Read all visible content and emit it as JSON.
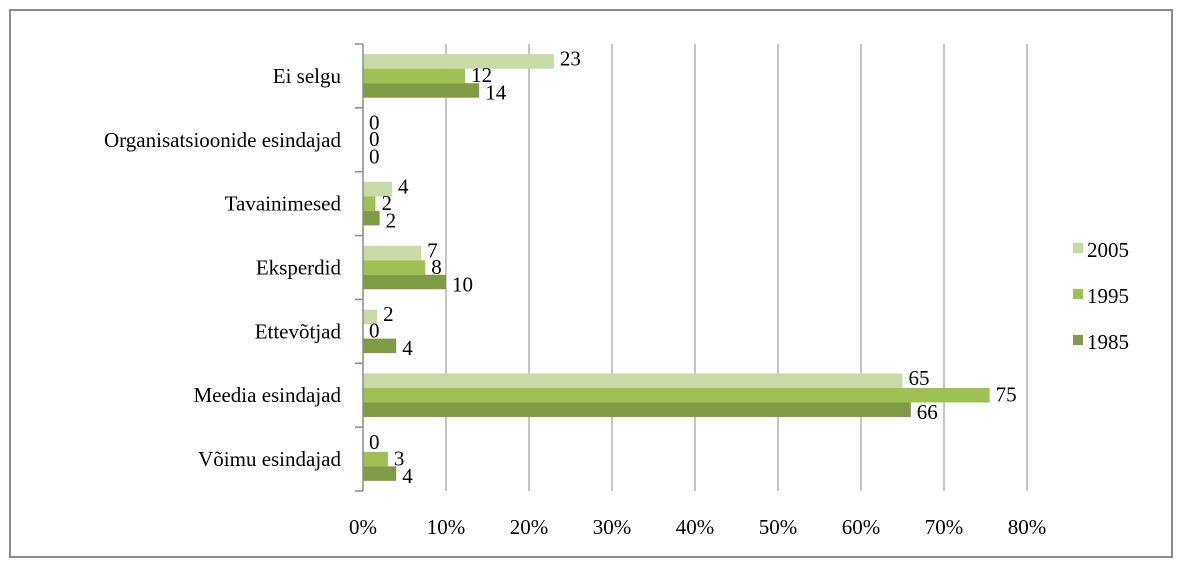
{
  "chart_data": {
    "type": "bar",
    "orientation": "horizontal",
    "categories": [
      "Võimu esindajad",
      "Meedia esindajad",
      "Ettevõtjad",
      "Eksperdid",
      "Tavainimesed",
      "Organisatsioonide esindajad",
      "Ei selgu"
    ],
    "series": [
      {
        "name": "1985",
        "color": "#7f9b46",
        "values": [
          4,
          66,
          4,
          10,
          2,
          0,
          14
        ],
        "values_pct": [
          4,
          66,
          4,
          10,
          2,
          0,
          14
        ]
      },
      {
        "name": "1995",
        "color": "#9fc153",
        "values": [
          3,
          75,
          0,
          8,
          2,
          0,
          12
        ],
        "values_pct": [
          3,
          75.5,
          0,
          7.5,
          1.5,
          0,
          12.3
        ]
      },
      {
        "name": "2005",
        "color": "#c8daa6",
        "values": [
          0,
          65,
          2,
          7,
          4,
          0,
          23
        ],
        "values_pct": [
          0,
          65,
          1.7,
          7,
          3.5,
          0,
          23
        ]
      }
    ],
    "xaxis": {
      "min": 0,
      "max": 80,
      "step": 10,
      "tick_suffix": "%"
    },
    "grid": true,
    "legend_position": "right",
    "title": "",
    "xlabel": "",
    "ylabel": ""
  }
}
